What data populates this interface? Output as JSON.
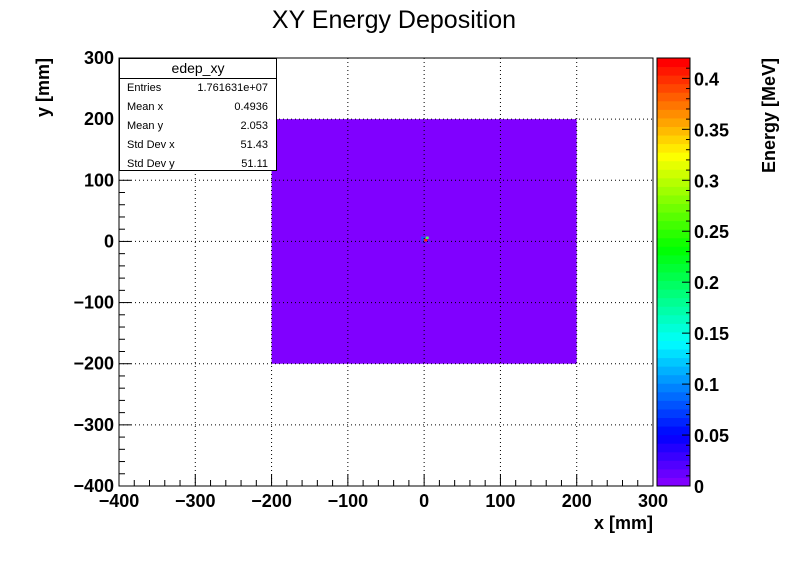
{
  "chart_data": {
    "type": "heatmap",
    "title": "XY Energy Deposition",
    "xlabel": "x [mm]",
    "ylabel": "y [mm]",
    "zlabel": "Energy [MeV]",
    "xlim": [
      -400,
      300
    ],
    "ylim": [
      -400,
      300
    ],
    "zlim": [
      0,
      0.42
    ],
    "xticks": [
      -400,
      -300,
      -200,
      -100,
      0,
      100,
      200,
      300
    ],
    "yticks": [
      -400,
      -300,
      -200,
      -100,
      0,
      100,
      200,
      300
    ],
    "zticks": [
      0,
      0.05,
      0.1,
      0.15,
      0.2,
      0.25,
      0.3,
      0.35,
      0.4
    ],
    "xtick_labels": [
      "−400",
      "−300",
      "−200",
      "−100",
      "0",
      "100",
      "200",
      "300"
    ],
    "ytick_labels": [
      "−400",
      "−300",
      "−200",
      "−100",
      "0",
      "100",
      "200",
      "300"
    ],
    "ztick_labels": [
      "0",
      "0.05",
      "0.1",
      "0.15",
      "0.2",
      "0.25",
      "0.3",
      "0.35",
      "0.4"
    ],
    "grid": true,
    "colormap": "rainbow",
    "regions": [
      {
        "x": [
          -200,
          200
        ],
        "y": [
          -200,
          200
        ],
        "z": 0.005,
        "color": "#8000ff"
      }
    ],
    "hotspots": [
      {
        "x": 0,
        "y": 0,
        "z": 0.42,
        "color": "#ff2000"
      },
      {
        "x": 2,
        "y": 4,
        "z": 0.25,
        "color": "#40ff60"
      },
      {
        "x": -4,
        "y": 4,
        "z": 0.1,
        "color": "#2050ff"
      },
      {
        "x": -4,
        "y": 0,
        "z": 0.06,
        "color": "#4a2aff"
      },
      {
        "x": 4,
        "y": -4,
        "z": 0.06,
        "color": "#4a2aff"
      },
      {
        "x": -4,
        "y": -4,
        "z": 0.04,
        "color": "#5a1aff"
      }
    ],
    "stats": {
      "name": "edep_xy",
      "rows": [
        {
          "label": "Entries",
          "value": "1.761631e+07"
        },
        {
          "label": "Mean x",
          "value": "0.4936"
        },
        {
          "label": "Mean y",
          "value": "2.053"
        },
        {
          "label": "Std Dev x",
          "value": "51.43"
        },
        {
          "label": "Std Dev y",
          "value": "51.11"
        }
      ]
    }
  }
}
